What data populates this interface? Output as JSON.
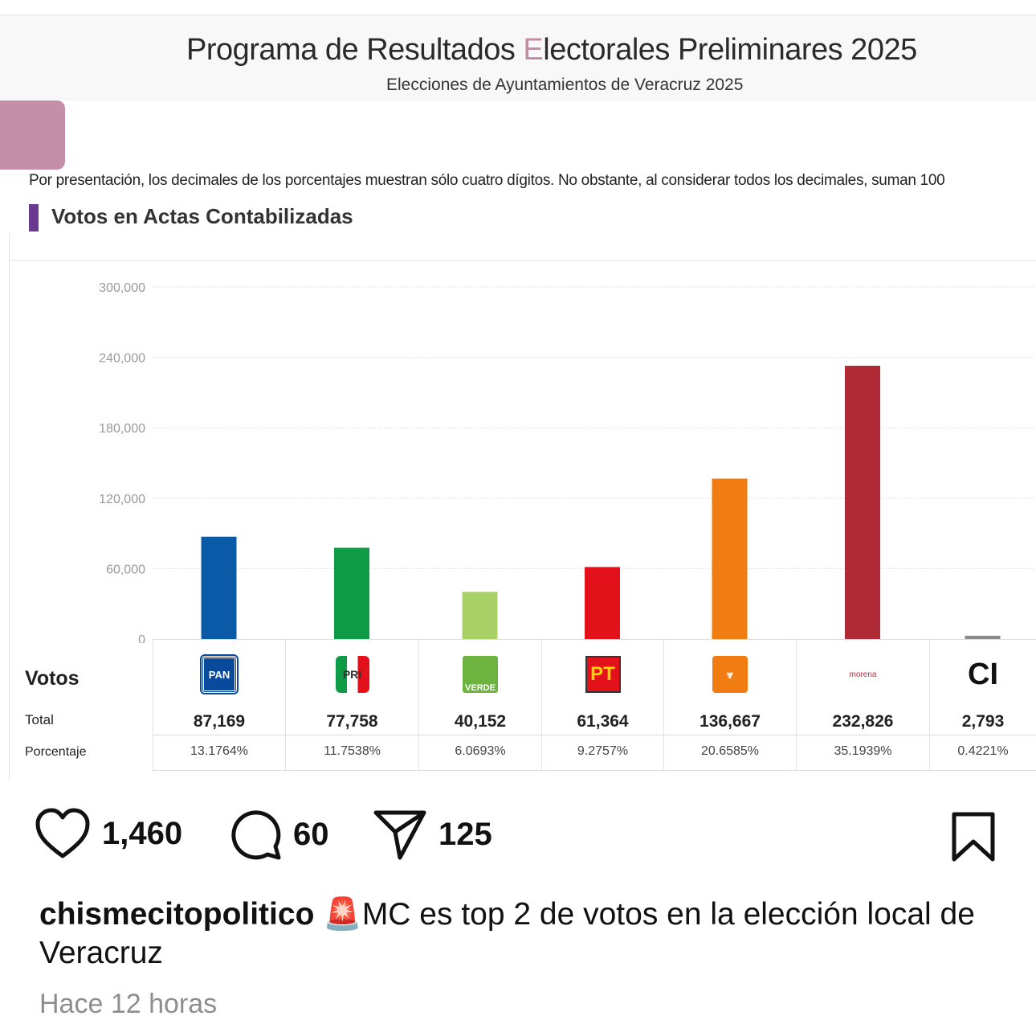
{
  "screenshot": {
    "title_pre": "Programa de Resultados ",
    "title_e": "E",
    "title_post": "lectorales Preliminares 2025",
    "subtitle": "Elecciones de Ayuntamientos de Veracruz 2025",
    "note": "Por presentación, los decimales de los porcentajes muestran sólo cuatro dígitos. No obstante, al considerar todos los decimales, suman 100",
    "section_title": "Votos en Actas Contabilizadas",
    "row_votos": "Votos",
    "row_total": "Total",
    "row_pct": "Porcentaje"
  },
  "chart_data": {
    "type": "bar",
    "title": "Votos en Actas Contabilizadas",
    "categories": [
      "PAN",
      "PRI",
      "PVEM",
      "PT",
      "MC",
      "Morena",
      "CI"
    ],
    "logo_text": [
      "PAN",
      "PRI",
      "VERDE",
      "PT",
      "MC",
      "morena",
      "CI"
    ],
    "values": [
      87169,
      77758,
      40152,
      61364,
      136667,
      232826,
      2793
    ],
    "labels": [
      "87,169",
      "77,758",
      "40,152",
      "61,364",
      "136,667",
      "232,826",
      "2,793"
    ],
    "percentages": [
      "13.1764%",
      "11.7538%",
      "6.0693%",
      "9.2757%",
      "20.6585%",
      "35.1939%",
      "0.4221%"
    ],
    "colors": [
      "#0a5aa8",
      "#0f9a45",
      "#a8d067",
      "#e3111a",
      "#f07c12",
      "#b02a35",
      "#8a8a8a"
    ],
    "yticks": [
      "300,000",
      "240,000",
      "180,000",
      "120,000",
      "60,000",
      "0"
    ],
    "ytick_values": [
      300000,
      240000,
      180000,
      120000,
      60000,
      0
    ],
    "ylim": [
      0,
      300000
    ],
    "grid": true
  },
  "post": {
    "likes": "1,460",
    "comments": "60",
    "shares": "125",
    "username": "chismecitopolitico",
    "emoji": "🚨",
    "caption": "MC es top 2 de votos en la elección local de Veracruz",
    "time": "Hace 12 horas"
  }
}
